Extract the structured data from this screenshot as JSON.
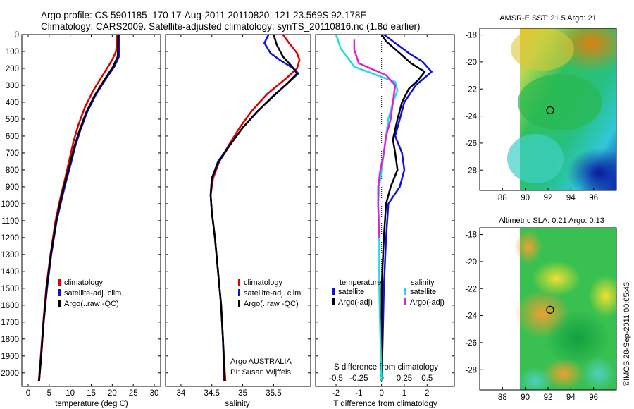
{
  "header": {
    "line1": "Argo profile: CS 5901185_170 17-Aug-2011 20110820_121 23.569S 92.178E",
    "line2": "Climatology: CARS2009. Satellite-adjusted climatology: synTS_20110816.nc (1.8d earlier)"
  },
  "side_label": "©IMOS 28-Sep-2011 00:05:43",
  "colors": {
    "climatology": "#dd0000",
    "satellite": "#1010dd",
    "argo": "#000000",
    "salinity_sat": "#22dddd",
    "salinity_argo": "#dd22dd"
  },
  "chart_data": [
    {
      "type": "line",
      "name": "temperature-panel",
      "xlabel": "temperature (deg C)",
      "xlim": [
        -1.5,
        31.5
      ],
      "xticks": [
        0,
        5,
        10,
        15,
        20,
        25,
        30
      ],
      "ylim": [
        0,
        2080
      ],
      "yticks": [
        0,
        100,
        200,
        300,
        400,
        500,
        600,
        700,
        800,
        900,
        1000,
        1100,
        1200,
        1300,
        1400,
        1500,
        1600,
        1700,
        1800,
        1900,
        2000
      ],
      "legend": [
        "climatology",
        "satellite-adj. clim.",
        "Argo(..raw -QC)"
      ],
      "series": [
        {
          "name": "climatology",
          "color": "#dd0000",
          "points": [
            [
              21.2,
              0
            ],
            [
              21.1,
              40
            ],
            [
              20.9,
              100
            ],
            [
              20.0,
              150
            ],
            [
              17.5,
              250
            ],
            [
              15.5,
              330
            ],
            [
              13.5,
              430
            ],
            [
              12,
              530
            ],
            [
              10.8,
              630
            ],
            [
              9.8,
              740
            ],
            [
              8.8,
              850
            ],
            [
              7.8,
              950
            ],
            [
              6.5,
              1100
            ],
            [
              5.3,
              1300
            ],
            [
              4.3,
              1500
            ],
            [
              3.6,
              1700
            ],
            [
              3.0,
              1900
            ],
            [
              2.5,
              2050
            ]
          ]
        },
        {
          "name": "satellite-adj. clim.",
          "color": "#1010dd",
          "points": [
            [
              21.7,
              0
            ],
            [
              21.7,
              40
            ],
            [
              21.6,
              130
            ],
            [
              20.5,
              190
            ],
            [
              18,
              280
            ],
            [
              16,
              360
            ],
            [
              14,
              460
            ],
            [
              12.5,
              560
            ],
            [
              11.2,
              660
            ],
            [
              10.2,
              760
            ],
            [
              9.2,
              850
            ],
            [
              8.2,
              950
            ],
            [
              6.8,
              1100
            ],
            [
              5.5,
              1300
            ],
            [
              4.5,
              1500
            ],
            [
              3.7,
              1700
            ],
            [
              3.1,
              1900
            ],
            [
              2.6,
              2050
            ]
          ]
        },
        {
          "name": "Argo(..raw -QC)",
          "color": "#000000",
          "points": [
            [
              21.4,
              0
            ],
            [
              21.4,
              40
            ],
            [
              21.3,
              130
            ],
            [
              20.2,
              190
            ],
            [
              17.8,
              280
            ],
            [
              15.8,
              360
            ],
            [
              13.8,
              460
            ],
            [
              12.3,
              560
            ],
            [
              11,
              660
            ],
            [
              10,
              760
            ],
            [
              9,
              850
            ],
            [
              8,
              950
            ],
            [
              6.7,
              1100
            ],
            [
              5.4,
              1300
            ],
            [
              4.4,
              1500
            ],
            [
              3.7,
              1700
            ],
            [
              3.1,
              1900
            ],
            [
              2.6,
              2050
            ]
          ]
        }
      ]
    },
    {
      "type": "line",
      "name": "salinity-panel",
      "xlabel": "salinity",
      "xlim": [
        33.75,
        36.1
      ],
      "xticks": [
        34,
        34.5,
        35,
        35.5
      ],
      "ylim": [
        0,
        2080
      ],
      "legend": [
        "climatology",
        "satellite-adj. clim.",
        "Argo(..raw -QC)"
      ],
      "annotation": [
        "Argo AUSTRALIA",
        "PI: Susan Wijffels"
      ],
      "series": [
        {
          "name": "climatology",
          "color": "#dd0000",
          "points": [
            [
              35.65,
              0
            ],
            [
              35.75,
              50
            ],
            [
              35.88,
              110
            ],
            [
              35.92,
              150
            ],
            [
              35.88,
              200
            ],
            [
              35.7,
              260
            ],
            [
              35.4,
              350
            ],
            [
              35.15,
              450
            ],
            [
              34.95,
              550
            ],
            [
              34.78,
              650
            ],
            [
              34.62,
              750
            ],
            [
              34.52,
              850
            ],
            [
              34.48,
              950
            ],
            [
              34.5,
              1050
            ],
            [
              34.55,
              1200
            ],
            [
              34.6,
              1400
            ],
            [
              34.65,
              1600
            ],
            [
              34.68,
              1800
            ],
            [
              34.72,
              2050
            ]
          ]
        },
        {
          "name": "satellite-adj. clim.",
          "color": "#1010dd",
          "points": [
            [
              35.42,
              0
            ],
            [
              35.35,
              50
            ],
            [
              35.45,
              110
            ],
            [
              35.6,
              150
            ],
            [
              35.82,
              200
            ],
            [
              35.9,
              230
            ],
            [
              35.75,
              280
            ],
            [
              35.5,
              360
            ],
            [
              35.25,
              450
            ],
            [
              35.0,
              550
            ],
            [
              34.8,
              650
            ],
            [
              34.6,
              750
            ],
            [
              34.5,
              850
            ],
            [
              34.48,
              950
            ],
            [
              34.5,
              1050
            ],
            [
              34.55,
              1200
            ],
            [
              34.6,
              1400
            ],
            [
              34.65,
              1600
            ],
            [
              34.68,
              1800
            ],
            [
              34.7,
              2050
            ]
          ]
        },
        {
          "name": "Argo(..raw -QC)",
          "color": "#000000",
          "points": [
            [
              35.5,
              0
            ],
            [
              35.55,
              60
            ],
            [
              35.65,
              130
            ],
            [
              35.8,
              190
            ],
            [
              35.88,
              230
            ],
            [
              35.72,
              290
            ],
            [
              35.48,
              370
            ],
            [
              35.22,
              460
            ],
            [
              34.98,
              560
            ],
            [
              34.78,
              660
            ],
            [
              34.6,
              760
            ],
            [
              34.5,
              850
            ],
            [
              34.48,
              950
            ],
            [
              34.5,
              1050
            ],
            [
              34.55,
              1200
            ],
            [
              34.6,
              1400
            ],
            [
              34.65,
              1600
            ],
            [
              34.68,
              1800
            ],
            [
              34.71,
              2050
            ]
          ]
        }
      ]
    },
    {
      "type": "line",
      "name": "difference-panel",
      "xlabel": "T difference from climatology",
      "xlabel2": "S difference from climatology",
      "xlim": [
        -2.9,
        3.2
      ],
      "xticks": [
        -2,
        -1,
        0,
        1,
        2
      ],
      "xticks_top": [
        "-0.5",
        "-0.25",
        "0",
        "0.25",
        "0.5"
      ],
      "xticks_top_pos": [
        -2,
        -1,
        0,
        1,
        2
      ],
      "ylim": [
        0,
        2080
      ],
      "legend_temperature_title": "temperature",
      "legend_salinity_title": "salinity",
      "legend": [
        "satellite",
        "Argo(-adj)",
        "satellite",
        "Argo(-adj)"
      ],
      "series": [
        {
          "name": "satellite",
          "color": "#1010dd",
          "points": [
            [
              0.1,
              0
            ],
            [
              0.6,
              50
            ],
            [
              1.2,
              110
            ],
            [
              1.8,
              160
            ],
            [
              2.2,
              220
            ],
            [
              1.5,
              300
            ],
            [
              1.0,
              400
            ],
            [
              0.8,
              500
            ],
            [
              0.6,
              600
            ],
            [
              0.9,
              700
            ],
            [
              1.0,
              800
            ],
            [
              0.8,
              900
            ],
            [
              0.3,
              1000
            ],
            [
              0.2,
              1200
            ],
            [
              0.1,
              1500
            ],
            [
              0.05,
              1800
            ],
            [
              0.0,
              2050
            ]
          ]
        },
        {
          "name": "Argo(-adj)",
          "color": "#000000",
          "points": [
            [
              0.0,
              0
            ],
            [
              0.2,
              40
            ],
            [
              0.8,
              110
            ],
            [
              1.3,
              170
            ],
            [
              1.9,
              220
            ],
            [
              1.6,
              270
            ],
            [
              1.2,
              320
            ],
            [
              0.9,
              400
            ],
            [
              0.7,
              500
            ],
            [
              0.5,
              620
            ],
            [
              0.6,
              700
            ],
            [
              0.7,
              800
            ],
            [
              0.4,
              900
            ],
            [
              0.2,
              1000
            ],
            [
              0.1,
              1200
            ],
            [
              0.0,
              1500
            ],
            [
              0.0,
              2050
            ]
          ]
        },
        {
          "name": "salinity satellite",
          "color": "#22dddd",
          "points": [
            [
              -2.0,
              0
            ],
            [
              -1.8,
              80
            ],
            [
              -1.2,
              190
            ],
            [
              0.6,
              280
            ],
            [
              0.7,
              330
            ],
            [
              0.5,
              400
            ],
            [
              0.3,
              500
            ],
            [
              0.2,
              600
            ],
            [
              0.1,
              700
            ],
            [
              0.0,
              800
            ],
            [
              -0.1,
              900
            ],
            [
              -0.15,
              1000
            ],
            [
              -0.1,
              1200
            ],
            [
              -0.1,
              1500
            ],
            [
              -0.05,
              1800
            ],
            [
              0.0,
              2050
            ]
          ]
        },
        {
          "name": "salinity Argo(-adj)",
          "color": "#dd22dd",
          "points": [
            [
              -1.2,
              30
            ],
            [
              -1.2,
              90
            ],
            [
              -1.0,
              170
            ],
            [
              0.2,
              240
            ],
            [
              0.6,
              300
            ],
            [
              0.5,
              400
            ],
            [
              0.4,
              500
            ],
            [
              0.2,
              600
            ],
            [
              0.1,
              700
            ],
            [
              -0.05,
              800
            ],
            [
              -0.15,
              900
            ],
            [
              -0.15,
              1000
            ],
            [
              -0.1,
              1200
            ]
          ]
        }
      ]
    },
    {
      "type": "heatmap",
      "name": "sst-map",
      "title": "AMSR-E SST: 21.5 Argo: 21",
      "xlim": [
        86,
        98
      ],
      "xticks": [
        88,
        90,
        92,
        94,
        96
      ],
      "ylim": [
        -29.5,
        -17.5
      ],
      "yticks": [
        -18,
        -20,
        -22,
        -24,
        -26,
        -28
      ],
      "marker": [
        92.18,
        -23.57
      ]
    },
    {
      "type": "heatmap",
      "name": "sla-map",
      "title": "Altimetric SLA: 0.21 Argo: 0.13",
      "xlim": [
        86,
        98
      ],
      "xticks": [
        88,
        90,
        92,
        94,
        96
      ],
      "ylim": [
        -29.5,
        -17.5
      ],
      "yticks": [
        -18,
        -20,
        -22,
        -24,
        -26,
        -28
      ],
      "marker": [
        92.18,
        -23.57
      ]
    }
  ]
}
